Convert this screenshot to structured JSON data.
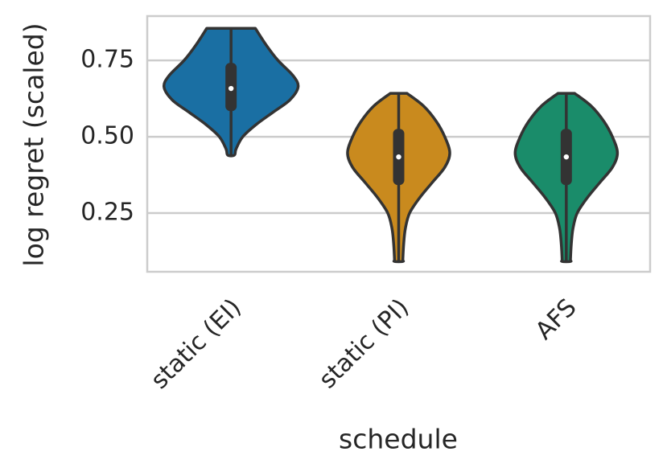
{
  "chart_data": {
    "type": "violin",
    "x_label": "schedule",
    "y_label": "log regret (scaled)",
    "categories": [
      "static (EI)",
      "static (PI)",
      "AFS"
    ],
    "ylim": [
      0.058,
      0.895
    ],
    "yticks": [
      {
        "value": 0.25,
        "label": "0.25"
      },
      {
        "value": 0.5,
        "label": "0.50"
      },
      {
        "value": 0.75,
        "label": "0.75"
      }
    ],
    "grid": true,
    "violins": [
      {
        "name": "static (EI)",
        "color": "#1a6fa3",
        "min": 0.44,
        "q1": 0.584,
        "median": 0.658,
        "q3": 0.742,
        "max": 0.855,
        "profile": {
          "y": [
            0.855,
            0.8,
            0.75,
            0.7,
            0.663,
            0.62,
            0.58,
            0.54,
            0.5,
            0.46,
            0.44
          ],
          "width": [
            0.29,
            0.42,
            0.56,
            0.74,
            0.8,
            0.7,
            0.5,
            0.3,
            0.14,
            0.06,
            0.04
          ]
        }
      },
      {
        "name": "static (PI)",
        "color": "#c98a1e",
        "min": 0.092,
        "q1": 0.342,
        "median": 0.434,
        "q3": 0.526,
        "max": 0.642,
        "profile": {
          "y": [
            0.642,
            0.6,
            0.55,
            0.5,
            0.447,
            0.4,
            0.35,
            0.3,
            0.25,
            0.2,
            0.15,
            0.1,
            0.092
          ],
          "width": [
            0.1,
            0.3,
            0.45,
            0.55,
            0.61,
            0.55,
            0.4,
            0.25,
            0.13,
            0.08,
            0.06,
            0.05,
            0.05
          ]
        }
      },
      {
        "name": "AFS",
        "color": "#1a8c6a",
        "min": 0.092,
        "q1": 0.342,
        "median": 0.434,
        "q3": 0.526,
        "max": 0.642,
        "profile": {
          "y": [
            0.642,
            0.6,
            0.55,
            0.5,
            0.447,
            0.4,
            0.35,
            0.3,
            0.25,
            0.2,
            0.15,
            0.1,
            0.092
          ],
          "width": [
            0.1,
            0.3,
            0.45,
            0.55,
            0.61,
            0.55,
            0.4,
            0.25,
            0.13,
            0.08,
            0.06,
            0.05,
            0.05
          ]
        }
      }
    ]
  }
}
